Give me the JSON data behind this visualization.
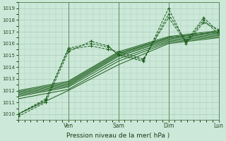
{
  "xlabel": "Pression niveau de la mer( hPa )",
  "bg_color": "#cce8d8",
  "grid_color": "#aaccb8",
  "line_color": "#1a5c1a",
  "ylim": [
    1009.5,
    1019.5
  ],
  "yticks": [
    1010,
    1011,
    1012,
    1013,
    1014,
    1015,
    1016,
    1017,
    1018,
    1019
  ],
  "xlim": [
    0.0,
    4.0
  ],
  "day_labels": [
    "Ven",
    "Sam",
    "Dim",
    "Lun"
  ],
  "day_positions": [
    1.0,
    2.0,
    3.0,
    4.0
  ],
  "solid_lines": [
    {
      "x": [
        0.0,
        1.0,
        2.0,
        3.0,
        4.0
      ],
      "y": [
        1010.0,
        1012.0,
        1014.2,
        1016.0,
        1016.5
      ]
    },
    {
      "x": [
        0.0,
        1.0,
        2.0,
        3.0,
        4.0
      ],
      "y": [
        1011.3,
        1012.1,
        1014.5,
        1016.1,
        1016.6
      ]
    },
    {
      "x": [
        0.0,
        1.0,
        2.0,
        3.0,
        4.0
      ],
      "y": [
        1011.5,
        1012.3,
        1014.7,
        1016.2,
        1016.7
      ]
    },
    {
      "x": [
        0.0,
        1.0,
        2.0,
        3.0,
        4.0
      ],
      "y": [
        1011.6,
        1012.4,
        1014.9,
        1016.3,
        1016.8
      ]
    },
    {
      "x": [
        0.0,
        1.0,
        2.0,
        3.0,
        4.0
      ],
      "y": [
        1011.7,
        1012.5,
        1015.0,
        1016.4,
        1016.9
      ]
    },
    {
      "x": [
        0.0,
        1.0,
        2.0,
        3.0,
        4.0
      ],
      "y": [
        1011.8,
        1012.6,
        1015.1,
        1016.5,
        1017.0
      ]
    },
    {
      "x": [
        0.0,
        1.0,
        2.0,
        3.0,
        4.0
      ],
      "y": [
        1011.9,
        1012.7,
        1015.2,
        1016.5,
        1017.0
      ]
    },
    {
      "x": [
        0.0,
        1.0,
        2.0,
        3.0,
        4.0
      ],
      "y": [
        1012.0,
        1012.8,
        1015.3,
        1016.6,
        1017.1
      ]
    }
  ],
  "dashed_lines": [
    {
      "x": [
        0.0,
        0.55,
        1.0,
        1.45,
        1.8,
        2.0,
        2.5,
        3.0,
        3.35,
        3.7,
        4.0
      ],
      "y": [
        1010.0,
        1011.3,
        1015.5,
        1015.8,
        1015.5,
        1015.3,
        1014.7,
        1018.2,
        1016.1,
        1018.0,
        1016.8
      ]
    },
    {
      "x": [
        0.0,
        0.55,
        1.0,
        1.45,
        1.8,
        2.0,
        2.5,
        3.0,
        3.35,
        3.7,
        4.0
      ],
      "y": [
        1010.0,
        1011.2,
        1015.6,
        1016.0,
        1015.7,
        1015.1,
        1014.6,
        1018.5,
        1016.2,
        1018.2,
        1017.0
      ]
    },
    {
      "x": [
        0.0,
        0.55,
        1.0,
        1.45,
        1.8,
        2.0,
        2.5,
        3.0,
        3.35,
        3.7,
        4.0
      ],
      "y": [
        1009.8,
        1011.0,
        1015.3,
        1016.2,
        1015.8,
        1015.0,
        1014.5,
        1019.0,
        1016.0,
        1017.8,
        1017.2
      ]
    }
  ]
}
